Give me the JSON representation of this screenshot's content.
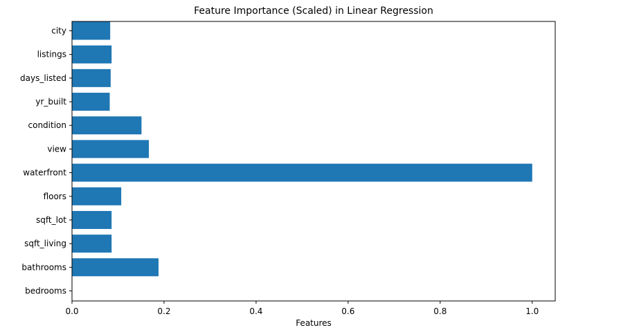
{
  "chart_data": {
    "type": "bar",
    "orientation": "horizontal",
    "title": "Feature Importance (Scaled) in Linear Regression",
    "xlabel": "Features",
    "ylabel": "",
    "categories": [
      "bedrooms",
      "bathrooms",
      "sqft_living",
      "sqft_lot",
      "floors",
      "waterfront",
      "view",
      "condition",
      "yr_built",
      "days_listed",
      "listings",
      "city"
    ],
    "values": [
      0.0,
      0.188,
      0.086,
      0.086,
      0.107,
      1.0,
      0.167,
      0.151,
      0.082,
      0.084,
      0.086,
      0.083
    ],
    "xlim": [
      0,
      1.05
    ],
    "xticks": [
      "0.0",
      "0.2",
      "0.4",
      "0.6",
      "0.8",
      "1.0"
    ],
    "bar_color": "#1f77b4",
    "grid": false,
    "legend": "none"
  }
}
